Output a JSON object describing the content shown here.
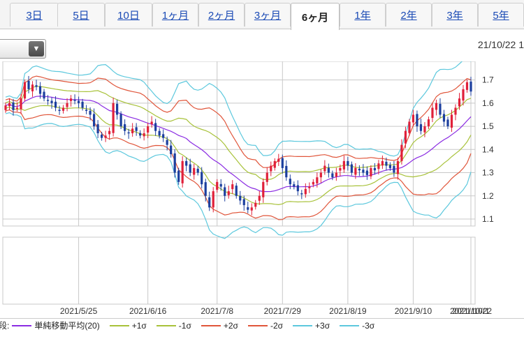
{
  "tabs": [
    {
      "label": "3日",
      "active": false
    },
    {
      "label": "5日",
      "active": false
    },
    {
      "label": "10日",
      "active": false
    },
    {
      "label": "1ヶ月",
      "active": false
    },
    {
      "label": "2ヶ月",
      "active": false
    },
    {
      "label": "3ヶ月",
      "active": false
    },
    {
      "label": "6ヶ月",
      "active": true
    },
    {
      "label": "1年",
      "active": false
    },
    {
      "label": "2年",
      "active": false
    },
    {
      "label": "3年",
      "active": false
    },
    {
      "label": "5年",
      "active": false
    }
  ],
  "header": {
    "date": "21/10/22 1"
  },
  "legend": {
    "lead": "段:",
    "items": [
      {
        "label": "単純移動平均(20)",
        "color": "#8a2be2"
      },
      {
        "label": "+1σ",
        "color": "#a8c23a"
      },
      {
        "label": "-1σ",
        "color": "#a8c23a"
      },
      {
        "label": "+2σ",
        "color": "#e0553a"
      },
      {
        "label": "-2σ",
        "color": "#e0553a"
      },
      {
        "label": "+3σ",
        "color": "#5cc8dd"
      },
      {
        "label": "-3σ",
        "color": "#5cc8dd"
      }
    ]
  },
  "chart_data": {
    "type": "candlestick",
    "y_ticks": [
      1.1,
      1.2,
      1.3,
      1.4,
      1.5,
      1.6,
      1.7
    ],
    "ylim": [
      1.07,
      1.78
    ],
    "x_tick_labels": [
      "2021/5/25",
      "2021/6/16",
      "2021/7/8",
      "2021/7/29",
      "2021/8/19",
      "2021/9/10",
      "2021/10/1",
      "2021/10/22"
    ],
    "colors": {
      "up": "#e0203a",
      "down": "#1c3f9e",
      "sma": "#8a2be2",
      "sigma1": "#a8c23a",
      "sigma2": "#e0553a",
      "sigma3": "#5cc8dd",
      "grid": "#c8c8c8"
    },
    "closes": [
      1.59,
      1.6,
      1.57,
      1.58,
      1.62,
      1.69,
      1.66,
      1.68,
      1.67,
      1.64,
      1.62,
      1.61,
      1.6,
      1.58,
      1.57,
      1.58,
      1.6,
      1.62,
      1.61,
      1.6,
      1.58,
      1.57,
      1.55,
      1.5,
      1.47,
      1.45,
      1.46,
      1.48,
      1.6,
      1.55,
      1.5,
      1.48,
      1.47,
      1.49,
      1.48,
      1.46,
      1.47,
      1.5,
      1.52,
      1.48,
      1.46,
      1.45,
      1.42,
      1.38,
      1.3,
      1.26,
      1.35,
      1.33,
      1.3,
      1.32,
      1.3,
      1.25,
      1.2,
      1.15,
      1.22,
      1.26,
      1.24,
      1.2,
      1.22,
      1.25,
      1.2,
      1.18,
      1.16,
      1.14,
      1.15,
      1.17,
      1.2,
      1.26,
      1.3,
      1.33,
      1.35,
      1.36,
      1.32,
      1.28,
      1.25,
      1.24,
      1.22,
      1.21,
      1.23,
      1.24,
      1.26,
      1.28,
      1.3,
      1.33,
      1.3,
      1.28,
      1.3,
      1.32,
      1.35,
      1.33,
      1.3,
      1.32,
      1.31,
      1.3,
      1.29,
      1.32,
      1.31,
      1.34,
      1.35,
      1.33,
      1.32,
      1.3,
      1.35,
      1.42,
      1.48,
      1.52,
      1.55,
      1.5,
      1.48,
      1.5,
      1.53,
      1.58,
      1.6,
      1.55,
      1.52,
      1.5,
      1.55,
      1.58,
      1.62,
      1.66,
      1.69,
      1.65
    ]
  }
}
